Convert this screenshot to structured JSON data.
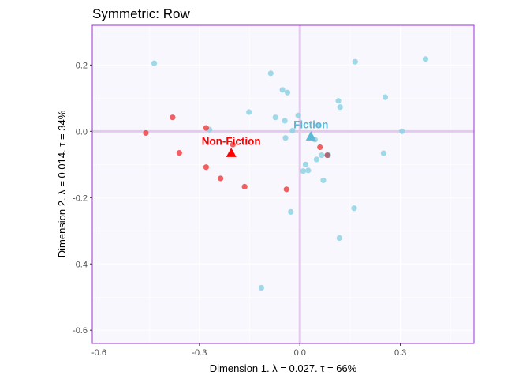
{
  "chart_data": {
    "type": "scatter",
    "title": "Symmetric: Row",
    "xlabel": "Dimension 1.   λ = 0.027.  τ = 66%",
    "ylabel": "Dimension 2.  λ = 0.014.  τ = 34%",
    "xlim": [
      -0.62,
      0.52
    ],
    "ylim": [
      -0.64,
      0.32
    ],
    "xticks": [
      -0.6,
      -0.3,
      0.0,
      0.3
    ],
    "xtick_labels": [
      "-0.6",
      "-0.3",
      "0.0",
      "0.3"
    ],
    "yticks": [
      0.2,
      0.0,
      -0.2,
      -0.4,
      -0.6
    ],
    "ytick_labels": [
      "0.2",
      "0.0",
      "-0.2",
      "-0.4",
      "-0.6"
    ],
    "grid": true,
    "colors": {
      "panel_bg": "#F8F7FD",
      "panel_border": "#9B30D6",
      "zero_line": "#E6C9EE",
      "gridline": "#FFFFFF",
      "fiction": "#5BB8D6",
      "fiction_point": "#8FD3E4",
      "non_fiction": "#FF0000",
      "non_fiction_point": "#F04545"
    },
    "series": [
      {
        "name": "Fiction",
        "color": "#8FD3E4",
        "points": [
          [
            -0.435,
            0.205
          ],
          [
            -0.27,
            0.005
          ],
          [
            -0.152,
            0.058
          ],
          [
            -0.087,
            0.175
          ],
          [
            -0.073,
            0.042
          ],
          [
            -0.052,
            0.125
          ],
          [
            -0.037,
            0.117
          ],
          [
            -0.045,
            0.032
          ],
          [
            -0.005,
            0.048
          ],
          [
            -0.043,
            -0.02
          ],
          [
            -0.022,
            0.002
          ],
          [
            0.055,
            0.018
          ],
          [
            0.045,
            -0.025
          ],
          [
            0.115,
            0.092
          ],
          [
            0.12,
            0.073
          ],
          [
            0.165,
            0.21
          ],
          [
            0.255,
            0.103
          ],
          [
            0.305,
            0.0
          ],
          [
            0.375,
            0.218
          ],
          [
            0.065,
            -0.072
          ],
          [
            0.085,
            -0.072
          ],
          [
            0.05,
            -0.085
          ],
          [
            0.017,
            -0.1
          ],
          [
            0.025,
            -0.118
          ],
          [
            0.01,
            -0.12
          ],
          [
            0.07,
            -0.148
          ],
          [
            -0.027,
            -0.243
          ],
          [
            0.162,
            -0.232
          ],
          [
            0.118,
            -0.322
          ],
          [
            -0.115,
            -0.472
          ],
          [
            0.25,
            -0.066
          ]
        ]
      },
      {
        "name": "Non-Fiction",
        "color": "#F04545",
        "points": [
          [
            -0.46,
            -0.005
          ],
          [
            -0.38,
            0.042
          ],
          [
            -0.36,
            -0.065
          ],
          [
            -0.28,
            0.01
          ],
          [
            -0.28,
            -0.108
          ],
          [
            -0.237,
            -0.142
          ],
          [
            -0.2,
            -0.04
          ],
          [
            -0.165,
            -0.167
          ],
          [
            -0.04,
            -0.175
          ],
          [
            0.06,
            -0.048
          ],
          [
            0.082,
            -0.072
          ]
        ]
      }
    ],
    "category_points": [
      {
        "label": "Fiction",
        "x": 0.033,
        "y": -0.015,
        "color": "#5BB8D6"
      },
      {
        "label": "Non-Fiction",
        "x": -0.205,
        "y": -0.065,
        "color": "#FF0000"
      }
    ]
  }
}
